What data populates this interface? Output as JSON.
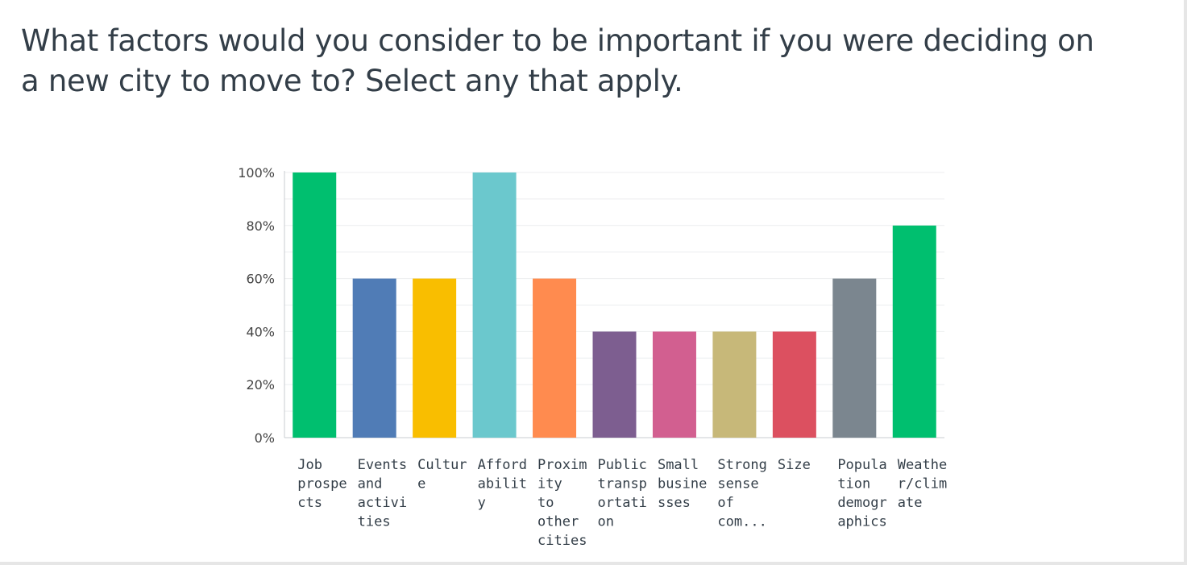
{
  "question": {
    "line1": "What factors would you consider to be important if you were deciding on",
    "line2": "a new city to move to? Select any that apply."
  },
  "chart_data": {
    "type": "bar",
    "title": "",
    "xlabel": "",
    "ylabel": "",
    "ylim": [
      0,
      100
    ],
    "y_ticks": [
      "0%",
      "20%",
      "40%",
      "60%",
      "80%",
      "100%"
    ],
    "grid": true,
    "categories": [
      "Job prospects",
      "Events and activities",
      "Culture",
      "Affordability",
      "Proximity to other cities",
      "Public transportation",
      "Small businesses",
      "Strong sense of com...",
      "Size",
      "Population demographics",
      "Weather/climate"
    ],
    "category_label_lines": [
      [
        "Job",
        "prospe",
        "cts"
      ],
      [
        "Events",
        "and",
        "activi",
        "ties"
      ],
      [
        "Cultur",
        "e"
      ],
      [
        "Afford",
        "abilit",
        "y"
      ],
      [
        "Proxim",
        "ity",
        "to",
        "other",
        "cities"
      ],
      [
        "Public",
        "transp",
        "ortati",
        "on"
      ],
      [
        "Small",
        "busine",
        "sses"
      ],
      [
        "Strong",
        "sense",
        "of",
        "com..."
      ],
      [
        "Size"
      ],
      [
        "Popula",
        "tion",
        "demogr",
        "aphics"
      ],
      [
        "Weathe",
        "r/clim",
        "ate"
      ]
    ],
    "values": [
      100,
      60,
      60,
      100,
      60,
      40,
      40,
      40,
      40,
      60,
      80
    ],
    "colors": [
      "#00bf6f",
      "#507cb6",
      "#f9be00",
      "#6bc8cd",
      "#ff8b4f",
      "#7d5e90",
      "#d25f90",
      "#c7b879",
      "#dc5060",
      "#7b868f",
      "#00bf6f"
    ]
  }
}
